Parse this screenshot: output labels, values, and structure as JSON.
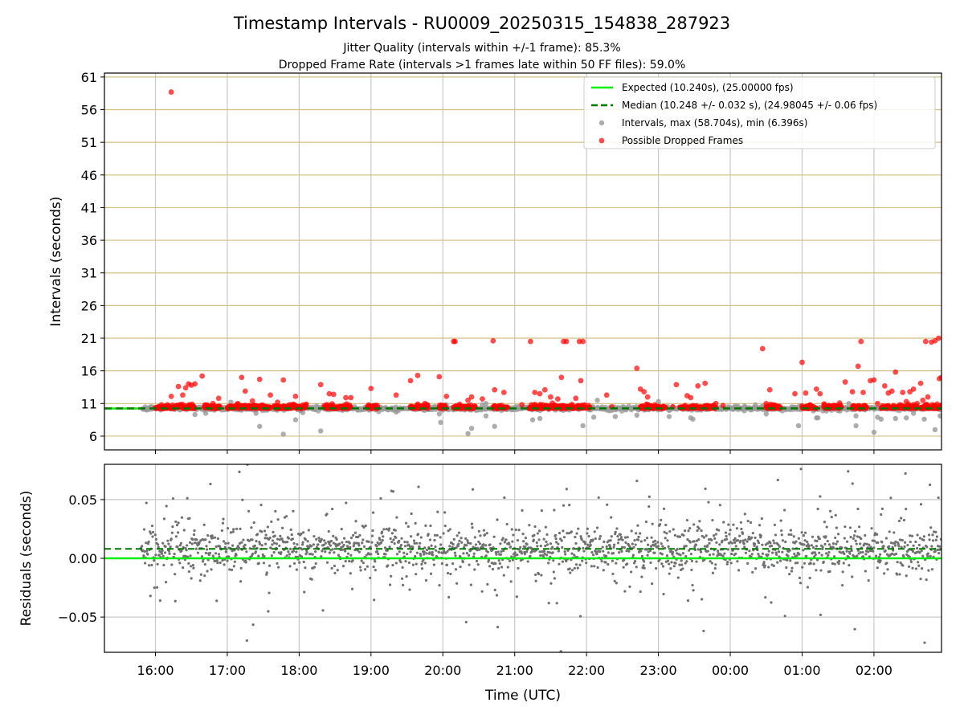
{
  "figure": {
    "title": "Timestamp Intervals - RU0009_20250315_154838_287923",
    "subtitle_jitter": "Jitter Quality (intervals within +/-1 frame): 85.3%",
    "subtitle_dropped": "Dropped Frame Rate (intervals >1 frames late within 50 FF files): 59.0%"
  },
  "colors": {
    "expected": "#00ee00",
    "median": "#007700",
    "intervals": "#999999",
    "dropped": "#ff0000",
    "residual_points": "#707070",
    "hgrid_top": "#d4bf80",
    "grid": "#c8c8c8"
  },
  "chart_data": [
    {
      "type": "scatter",
      "panel": "intervals",
      "ylabel": "Intervals (seconds)",
      "xlabel": "",
      "x_ticks": [
        "16:00",
        "17:00",
        "18:00",
        "19:00",
        "20:00",
        "21:00",
        "22:00",
        "23:00",
        "00:00",
        "01:00",
        "02:00"
      ],
      "x_range_hours": [
        15.29,
        26.94
      ],
      "y_ticks": [
        "6",
        "11",
        "16",
        "21",
        "26",
        "31",
        "36",
        "41",
        "46",
        "51",
        "56",
        "61"
      ],
      "ylim": [
        3.9,
        61.6
      ],
      "grid": true,
      "legend_placement": "top-right",
      "legend": [
        {
          "key": "expected",
          "label": "Expected (10.240s), (25.00000 fps)"
        },
        {
          "key": "median",
          "label": "Median (10.248 +/- 0.032 s), (24.98045 +/- 0.06 fps)"
        },
        {
          "key": "intervals",
          "label": "Intervals, max (58.704s), min (6.396s)"
        },
        {
          "key": "dropped",
          "label": "Possible Dropped Frames"
        }
      ],
      "expected_interval": 10.24,
      "median_interval": 10.248,
      "max_interval": 58.704,
      "min_interval": 6.396,
      "dropped_points": [
        [
          16.22,
          58.7
        ],
        [
          16.22,
          12.1
        ],
        [
          16.32,
          13.6
        ],
        [
          16.38,
          12.3
        ],
        [
          16.42,
          13.4
        ],
        [
          16.46,
          14.0
        ],
        [
          16.5,
          13.8
        ],
        [
          16.55,
          14.0
        ],
        [
          16.65,
          15.2
        ],
        [
          16.8,
          11.0
        ],
        [
          16.88,
          11.8
        ],
        [
          17.2,
          15.0
        ],
        [
          17.25,
          12.9
        ],
        [
          17.35,
          11.4
        ],
        [
          17.45,
          14.7
        ],
        [
          17.6,
          12.3
        ],
        [
          17.7,
          11.2
        ],
        [
          17.78,
          14.6
        ],
        [
          17.95,
          12.1
        ],
        [
          18.1,
          10.9
        ],
        [
          18.3,
          13.9
        ],
        [
          18.42,
          12.5
        ],
        [
          18.48,
          12.4
        ],
        [
          18.65,
          11.9
        ],
        [
          18.72,
          11.9
        ],
        [
          19.0,
          13.3
        ],
        [
          19.35,
          12.3
        ],
        [
          19.55,
          14.5
        ],
        [
          19.65,
          15.3
        ],
        [
          19.75,
          11.0
        ],
        [
          19.95,
          15.1
        ],
        [
          20.05,
          12.1
        ],
        [
          20.15,
          20.5
        ],
        [
          20.17,
          20.5
        ],
        [
          20.35,
          11.5
        ],
        [
          20.4,
          12.0
        ],
        [
          20.45,
          10.5
        ],
        [
          20.55,
          11.7
        ],
        [
          20.7,
          20.6
        ],
        [
          20.72,
          13.1
        ],
        [
          20.85,
          12.7
        ],
        [
          21.1,
          10.8
        ],
        [
          21.22,
          20.5
        ],
        [
          21.28,
          12.7
        ],
        [
          21.35,
          12.5
        ],
        [
          21.42,
          13.1
        ],
        [
          21.5,
          12.0
        ],
        [
          21.6,
          11.7
        ],
        [
          21.65,
          15.0
        ],
        [
          21.68,
          20.5
        ],
        [
          21.72,
          20.5
        ],
        [
          21.85,
          11.8
        ],
        [
          21.9,
          20.5
        ],
        [
          21.95,
          20.5
        ],
        [
          21.92,
          14.5
        ],
        [
          22.28,
          12.3
        ],
        [
          22.35,
          10.5
        ],
        [
          22.7,
          16.4
        ],
        [
          22.75,
          13.2
        ],
        [
          22.8,
          12.8
        ],
        [
          22.85,
          12.0
        ],
        [
          22.95,
          10.8
        ],
        [
          23.2,
          10.5
        ],
        [
          23.25,
          13.9
        ],
        [
          23.4,
          12.2
        ],
        [
          23.45,
          11.9
        ],
        [
          23.55,
          13.7
        ],
        [
          23.65,
          14.1
        ],
        [
          23.8,
          11.0
        ],
        [
          23.9,
          10.7
        ],
        [
          24.45,
          19.4
        ],
        [
          24.5,
          11.0
        ],
        [
          24.55,
          13.1
        ],
        [
          24.9,
          12.5
        ],
        [
          25.0,
          17.3
        ],
        [
          25.05,
          12.6
        ],
        [
          25.2,
          13.2
        ],
        [
          25.25,
          12.5
        ],
        [
          25.6,
          14.3
        ],
        [
          25.7,
          12.8
        ],
        [
          25.78,
          16.7
        ],
        [
          25.82,
          20.5
        ],
        [
          25.85,
          12.7
        ],
        [
          25.95,
          14.5
        ],
        [
          26.0,
          14.6
        ],
        [
          26.05,
          11.0
        ],
        [
          26.15,
          13.7
        ],
        [
          26.2,
          12.6
        ],
        [
          26.25,
          12.9
        ],
        [
          26.3,
          15.8
        ],
        [
          26.4,
          12.7
        ],
        [
          26.45,
          11.3
        ],
        [
          26.5,
          12.8
        ],
        [
          26.55,
          13.2
        ],
        [
          26.65,
          14.1
        ],
        [
          26.68,
          11.5
        ],
        [
          26.72,
          20.5
        ],
        [
          26.8,
          20.4
        ],
        [
          26.85,
          20.6
        ],
        [
          26.9,
          21.0
        ],
        [
          26.94,
          15.0
        ],
        [
          26.91,
          14.8
        ],
        [
          26.75,
          12.0
        ],
        [
          26.6,
          11.0
        ]
      ],
      "interval_points": [
        [
          15.85,
          10.2
        ],
        [
          15.95,
          10.5
        ],
        [
          16.05,
          10.3
        ],
        [
          16.55,
          9.3
        ],
        [
          16.7,
          9.5
        ],
        [
          17.05,
          11.2
        ],
        [
          17.4,
          9.5
        ],
        [
          17.45,
          7.5
        ],
        [
          17.78,
          6.3
        ],
        [
          17.95,
          8.5
        ],
        [
          18.05,
          9.6
        ],
        [
          18.3,
          6.8
        ],
        [
          19.35,
          9.7
        ],
        [
          19.95,
          9.4
        ],
        [
          19.97,
          8.1
        ],
        [
          20.05,
          10.8
        ],
        [
          20.35,
          6.4
        ],
        [
          20.4,
          7.2
        ],
        [
          20.55,
          10.8
        ],
        [
          20.6,
          11.0
        ],
        [
          20.6,
          9.1
        ],
        [
          20.72,
          7.5
        ],
        [
          21.25,
          8.5
        ],
        [
          21.35,
          8.7
        ],
        [
          21.95,
          7.6
        ],
        [
          22.1,
          8.9
        ],
        [
          22.15,
          11.5
        ],
        [
          22.4,
          9.0
        ],
        [
          22.7,
          9.2
        ],
        [
          23.0,
          11.3
        ],
        [
          23.15,
          9.0
        ],
        [
          23.45,
          8.8
        ],
        [
          23.48,
          8.6
        ],
        [
          24.35,
          10.8
        ],
        [
          24.45,
          10.6
        ],
        [
          24.5,
          9.4
        ],
        [
          24.95,
          7.6
        ],
        [
          25.2,
          8.8
        ],
        [
          25.22,
          8.8
        ],
        [
          25.65,
          11.0
        ],
        [
          25.75,
          7.6
        ],
        [
          25.75,
          9.1
        ],
        [
          26.0,
          6.6
        ],
        [
          26.05,
          8.9
        ],
        [
          26.1,
          8.6
        ],
        [
          26.3,
          8.7
        ],
        [
          26.35,
          10.8
        ],
        [
          26.45,
          8.8
        ],
        [
          26.55,
          9.5
        ],
        [
          26.7,
          8.6
        ],
        [
          26.85,
          7.0
        ],
        [
          26.92,
          9.1
        ],
        [
          25.5,
          9.9
        ],
        [
          24.2,
          10.6
        ]
      ],
      "dense_band_hours": [
        [
          16.0,
          16.55
        ],
        [
          16.68,
          16.9
        ],
        [
          17.0,
          17.6
        ],
        [
          17.65,
          18.1
        ],
        [
          18.35,
          18.72
        ],
        [
          18.95,
          19.1
        ],
        [
          19.55,
          19.8
        ],
        [
          19.95,
          20.05
        ],
        [
          20.15,
          20.45
        ],
        [
          20.7,
          20.9
        ],
        [
          21.2,
          22.05
        ],
        [
          22.75,
          23.1
        ],
        [
          23.3,
          23.55
        ],
        [
          23.55,
          23.8
        ],
        [
          24.5,
          24.7
        ],
        [
          25.0,
          25.2
        ],
        [
          25.3,
          25.55
        ],
        [
          25.7,
          25.9
        ],
        [
          26.1,
          26.6
        ],
        [
          26.65,
          26.94
        ]
      ]
    },
    {
      "type": "scatter",
      "panel": "residuals",
      "ylabel": "Residuals (seconds)",
      "xlabel": "Time (UTC)",
      "x_ticks": [
        "16:00",
        "17:00",
        "18:00",
        "19:00",
        "20:00",
        "21:00",
        "22:00",
        "23:00",
        "00:00",
        "01:00",
        "02:00"
      ],
      "y_ticks": [
        "0.05",
        "0.00",
        "−0.05"
      ],
      "ylim": [
        -0.08,
        0.08
      ],
      "grid": true,
      "expected_residual": 0.0,
      "median_residual": 0.008,
      "time_span_hours": [
        15.8,
        26.94
      ],
      "points_approx_count": 1800,
      "core_std_seconds": 0.012
    }
  ]
}
